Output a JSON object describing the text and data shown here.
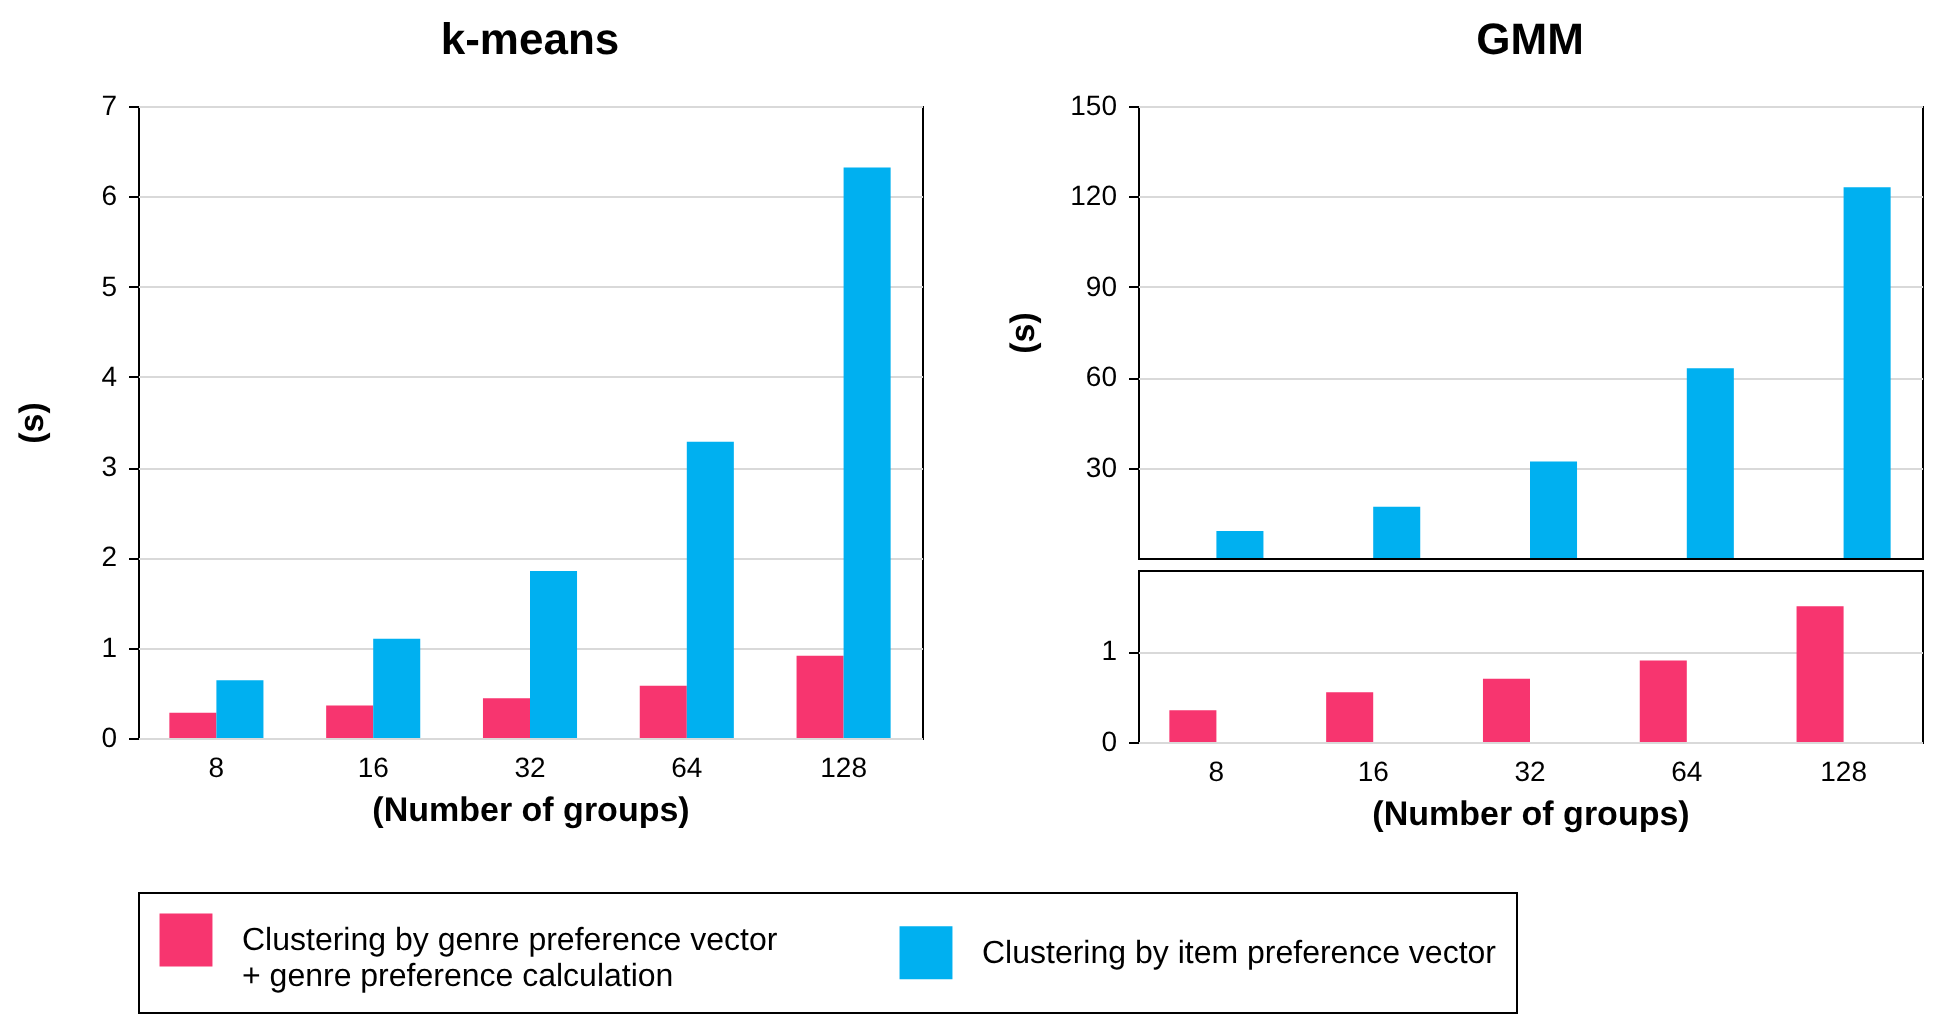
{
  "chart_data": [
    {
      "type": "bar",
      "title": "k-means",
      "xlabel": "(Number of groups)",
      "ylabel": "(s)",
      "categories": [
        "8",
        "16",
        "32",
        "64",
        "128"
      ],
      "series": [
        {
          "name": "Clustering by genre preference vector\n+ genre preference calculation",
          "color": "#f7356f",
          "values": [
            0.28,
            0.36,
            0.44,
            0.58,
            0.91
          ]
        },
        {
          "name": "Clustering by item preference vector",
          "color": "#00b0f0",
          "values": [
            0.64,
            1.1,
            1.85,
            3.28,
            6.32
          ]
        }
      ],
      "ylim": [
        0,
        7
      ],
      "yticks": [
        0,
        1,
        2,
        3,
        4,
        5,
        6,
        7
      ],
      "grid": "y",
      "legend": "bottom"
    },
    {
      "type": "bar",
      "title": "GMM",
      "ylabel": "(s)",
      "categories": [
        "8",
        "16",
        "32",
        "64",
        "128"
      ],
      "series": [
        {
          "name": "Clustering by item preference vector",
          "color": "#00b0f0",
          "values": [
            9,
            17,
            32,
            63,
            123
          ]
        }
      ],
      "ylim": [
        0,
        150
      ],
      "yticks": [
        30,
        60,
        90,
        120,
        150
      ],
      "grid": "y",
      "tick_labels": "y"
    },
    {
      "type": "bar",
      "xlabel": "(Number of groups)",
      "categories": [
        "8",
        "16",
        "32",
        "64",
        "128"
      ],
      "series": [
        {
          "name": "Clustering by genre preference vector\n+ genre preference calculation",
          "color": "#f7356f",
          "values": [
            0.35,
            0.55,
            0.7,
            0.9,
            1.5
          ]
        },
        {
          "name": "Clustering by item preference vector",
          "color": "#00b0f0",
          "values": [
            null,
            null,
            null,
            null,
            null
          ]
        }
      ],
      "ylim": [
        0,
        1.9
      ],
      "yticks": [
        0,
        1
      ],
      "grid": "y"
    }
  ]
}
